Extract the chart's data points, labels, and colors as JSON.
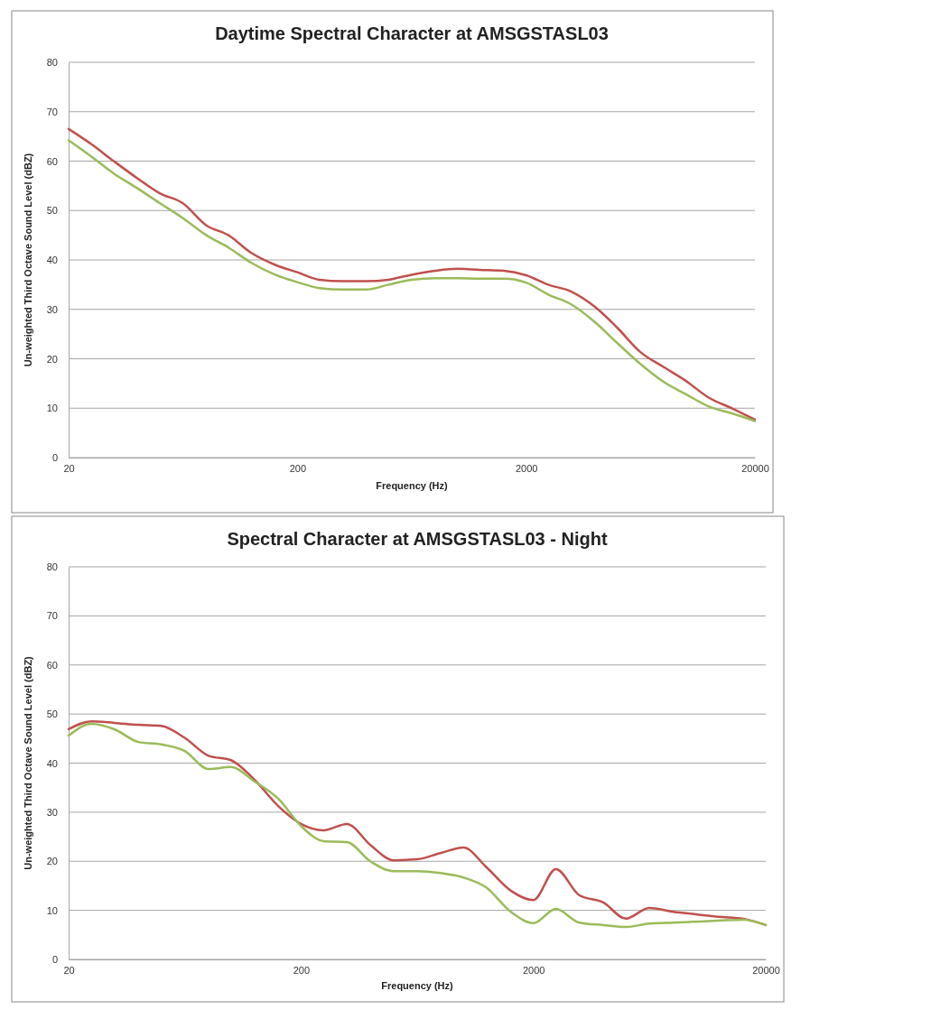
{
  "chart_data": [
    {
      "type": "line",
      "title": "Daytime Spectral Character at AMSGSTASL03",
      "xlabel": "Frequency (Hz)",
      "ylabel": "Un-weighted Third Octave Sound Level (dBZ)",
      "log": "x",
      "grid": "y",
      "marker": "none",
      "line_style": "solid",
      "x": [
        20,
        25,
        31.5,
        40,
        50,
        63,
        80,
        100,
        125,
        160,
        200,
        250,
        315,
        400,
        500,
        630,
        800,
        1000,
        1250,
        1600,
        2000,
        2500,
        3150,
        4000,
        5000,
        6300,
        8000,
        10000,
        12500,
        16000,
        20000
      ],
      "xlim": [
        20,
        20000
      ],
      "xticks": [
        20,
        200,
        2000,
        20000
      ],
      "ylim": [
        0,
        80
      ],
      "yticks": [
        0,
        10,
        20,
        30,
        40,
        50,
        60,
        70,
        80
      ],
      "series": [
        {
          "color": "#c0504d",
          "values": [
            66.5,
            63.5,
            60,
            56.5,
            53.5,
            51.5,
            47,
            45,
            41.5,
            39,
            37.5,
            36,
            35.7,
            35.7,
            36,
            37,
            37.8,
            38.2,
            38,
            37.8,
            36.9,
            35,
            33.6,
            30.5,
            26.3,
            21.4,
            18.3,
            15.5,
            12.2,
            9.9,
            7.7
          ]
        },
        {
          "color": "#9bbb59",
          "values": [
            64.2,
            61,
            57.5,
            54.5,
            51.5,
            48.5,
            45,
            42.5,
            39.5,
            37,
            35.5,
            34.3,
            34,
            34,
            35,
            36,
            36.3,
            36.3,
            36.2,
            36.2,
            35.4,
            33,
            31,
            27.4,
            23.2,
            19,
            15.3,
            12.8,
            10.4,
            8.9,
            7.4
          ]
        }
      ]
    },
    {
      "type": "line",
      "title": "Spectral Character at AMSGSTASL03 - Night",
      "xlabel": "Frequency (Hz)",
      "ylabel": "Un-weighted Third Octave Sound Level (dBZ)",
      "log": "x",
      "grid": "y",
      "marker": "none",
      "line_style": "solid",
      "x": [
        20,
        25,
        31.5,
        40,
        50,
        63,
        80,
        100,
        125,
        160,
        200,
        250,
        315,
        400,
        500,
        630,
        800,
        1000,
        1250,
        1600,
        2000,
        2500,
        3150,
        4000,
        5000,
        6300,
        8000,
        10000,
        12500,
        16000,
        20000
      ],
      "xlim": [
        20,
        20000
      ],
      "xticks": [
        20,
        200,
        2000,
        20000
      ],
      "ylim": [
        0,
        80
      ],
      "yticks": [
        0,
        10,
        20,
        30,
        40,
        50,
        60,
        70,
        80
      ],
      "series": [
        {
          "color": "#c0504d",
          "values": [
            46.9,
            48.5,
            48.2,
            47.8,
            47.6,
            45.2,
            41.5,
            40.6,
            36.8,
            31.2,
            27.6,
            26.3,
            27.6,
            23.2,
            20.2,
            20.4,
            21.7,
            22.8,
            18.9,
            14,
            12.1,
            18.4,
            13.1,
            11.6,
            8.3,
            10.5,
            9.7,
            9.2,
            8.7,
            8.3,
            7
          ]
        },
        {
          "color": "#9bbb59",
          "values": [
            45.6,
            48,
            46.9,
            44.3,
            43.8,
            42.5,
            38.8,
            39.2,
            36.4,
            32.7,
            27.2,
            24.1,
            23.9,
            19.9,
            18,
            18,
            17.6,
            16.7,
            14.7,
            9.7,
            7.4,
            10.3,
            7.5,
            7,
            6.6,
            7.3,
            7.5,
            7.7,
            7.9,
            8.1,
            7
          ]
        }
      ]
    }
  ]
}
